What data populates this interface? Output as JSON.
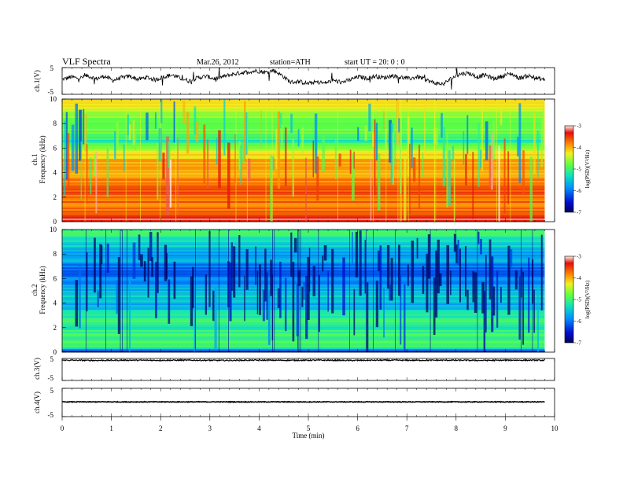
{
  "header": {
    "title": "VLF  Spectra",
    "date": "Mar.26, 2012",
    "station": "station=ATH",
    "start": "start  UT  =    20: 0  : 0"
  },
  "colors": {
    "trace": "#000000",
    "colormap": [
      "#000060",
      "#0010d0",
      "#0090ff",
      "#10e0c0",
      "#60ff40",
      "#f0f020",
      "#ff8000",
      "#e01010",
      "#fff0e0"
    ]
  },
  "chart_data": [
    {
      "type": "line",
      "id": "ch1",
      "ylabel": "ch.1(V)",
      "ytick_labels": [
        "5",
        "-5"
      ],
      "ylim": [
        -5,
        5
      ],
      "xlim": [
        0,
        10
      ],
      "x_end": 9.8,
      "values": [
        0.5,
        1.5,
        1.0,
        2.0,
        0.8,
        1.8,
        0.2,
        1.2,
        1.8,
        0.6,
        1.4,
        0.4,
        1.6,
        2.2,
        1.0,
        0.0,
        1.2,
        1.8,
        0.8,
        1.6,
        2.4,
        3.0,
        3.4,
        3.8,
        3.2,
        4.0,
        2.0,
        -0.5,
        -0.2,
        -1.0,
        -0.4,
        -0.8,
        0.2,
        -0.5,
        0.4,
        1.6,
        1.0,
        1.8,
        1.2,
        2.0,
        1.4,
        0.8,
        1.6,
        0.4,
        -0.8,
        -1.2,
        1.0,
        2.6,
        3.0,
        1.5,
        2.2,
        0.8,
        1.8,
        2.8,
        1.0,
        2.0,
        1.0,
        0.5
      ]
    },
    {
      "type": "heatmap",
      "id": "ch1-spectrogram",
      "ylabel_lines": [
        "ch.1",
        "Frequency (kHz)"
      ],
      "ytick_labels": [
        "10",
        "8",
        "6",
        "4",
        "2",
        "0"
      ],
      "ylim": [
        0,
        10
      ],
      "xlim": [
        0,
        10
      ],
      "x_end": 9.8,
      "colorbar": {
        "label": "log(PSD)(V²/Hz)",
        "tick_labels": [
          "-3",
          "-4",
          "-5",
          "-6",
          "-7"
        ],
        "range": [
          -7,
          -3
        ]
      },
      "mean_log_psd_profile": [
        {
          "f": 0.0,
          "v": -3.2
        },
        {
          "f": 0.4,
          "v": -3.4
        },
        {
          "f": 0.8,
          "v": -3.6
        },
        {
          "f": 1.2,
          "v": -3.8
        },
        {
          "f": 1.6,
          "v": -3.7
        },
        {
          "f": 2.0,
          "v": -3.8
        },
        {
          "f": 2.6,
          "v": -3.5
        },
        {
          "f": 3.0,
          "v": -3.7
        },
        {
          "f": 3.5,
          "v": -3.9
        },
        {
          "f": 4.0,
          "v": -4.1
        },
        {
          "f": 4.5,
          "v": -3.9
        },
        {
          "f": 5.0,
          "v": -4.0
        },
        {
          "f": 5.5,
          "v": -4.3
        },
        {
          "f": 6.0,
          "v": -4.6
        },
        {
          "f": 6.5,
          "v": -5.2
        },
        {
          "f": 7.0,
          "v": -5.0
        },
        {
          "f": 7.5,
          "v": -4.7
        },
        {
          "f": 8.0,
          "v": -4.9
        },
        {
          "f": 8.5,
          "v": -4.6
        },
        {
          "f": 9.0,
          "v": -4.5
        },
        {
          "f": 9.5,
          "v": -4.3
        },
        {
          "f": 10.0,
          "v": -4.2
        }
      ]
    },
    {
      "type": "heatmap",
      "id": "ch2-spectrogram",
      "ylabel_lines": [
        "ch.2",
        "Frequency (kHz)"
      ],
      "ytick_labels": [
        "10",
        "8",
        "6",
        "4",
        "2",
        "0"
      ],
      "ylim": [
        0,
        10
      ],
      "xlim": [
        0,
        10
      ],
      "x_end": 9.8,
      "colorbar": {
        "label": "log(PSD)(V²/Hz)",
        "tick_labels": [
          "-3",
          "-4",
          "-5",
          "-6",
          "-7"
        ],
        "range": [
          -7,
          -3
        ]
      },
      "mean_log_psd_profile": [
        {
          "f": 0.0,
          "v": -6.8
        },
        {
          "f": 0.3,
          "v": -5.2
        },
        {
          "f": 0.8,
          "v": -4.9
        },
        {
          "f": 1.2,
          "v": -5.1
        },
        {
          "f": 1.6,
          "v": -5.0
        },
        {
          "f": 2.0,
          "v": -5.2
        },
        {
          "f": 2.5,
          "v": -4.9
        },
        {
          "f": 3.0,
          "v": -5.2
        },
        {
          "f": 3.5,
          "v": -5.5
        },
        {
          "f": 4.0,
          "v": -5.7
        },
        {
          "f": 4.5,
          "v": -5.4
        },
        {
          "f": 5.0,
          "v": -5.6
        },
        {
          "f": 5.5,
          "v": -5.8
        },
        {
          "f": 6.0,
          "v": -5.9
        },
        {
          "f": 6.5,
          "v": -6.3
        },
        {
          "f": 7.0,
          "v": -6.0
        },
        {
          "f": 7.5,
          "v": -5.6
        },
        {
          "f": 8.0,
          "v": -5.8
        },
        {
          "f": 8.5,
          "v": -5.5
        },
        {
          "f": 9.0,
          "v": -5.3
        },
        {
          "f": 9.5,
          "v": -5.1
        },
        {
          "f": 10.0,
          "v": -5.0
        }
      ]
    },
    {
      "type": "line",
      "id": "ch3",
      "ylabel": "ch.3(V)",
      "ytick_labels": [
        "5",
        "-5"
      ],
      "ylim": [
        -5,
        5
      ],
      "xlim": [
        0,
        10
      ],
      "x_end": 9.8,
      "values": [
        4.2,
        4.1,
        4.2,
        4.15,
        4.2,
        4.1,
        4.2,
        4.15,
        4.2,
        4.1,
        4.2,
        4.15,
        4.2,
        4.1,
        4.2,
        4.15
      ]
    },
    {
      "type": "line",
      "id": "ch4",
      "ylabel": "ch.4(V)",
      "ytick_labels": [
        "5",
        "-5"
      ],
      "ylim": [
        -5,
        5
      ],
      "xlim": [
        0,
        10
      ],
      "x_end": 9.8,
      "values": [
        0.2,
        0.2,
        0.2,
        0.2,
        0.2,
        0.2,
        0.2,
        0.2,
        0.2,
        0.2,
        0.2,
        0.2
      ]
    }
  ],
  "time_axis": {
    "label": "Time  (min)",
    "tick_labels": [
      "0",
      "1",
      "2",
      "3",
      "4",
      "5",
      "6",
      "7",
      "8",
      "9",
      "10"
    ]
  }
}
